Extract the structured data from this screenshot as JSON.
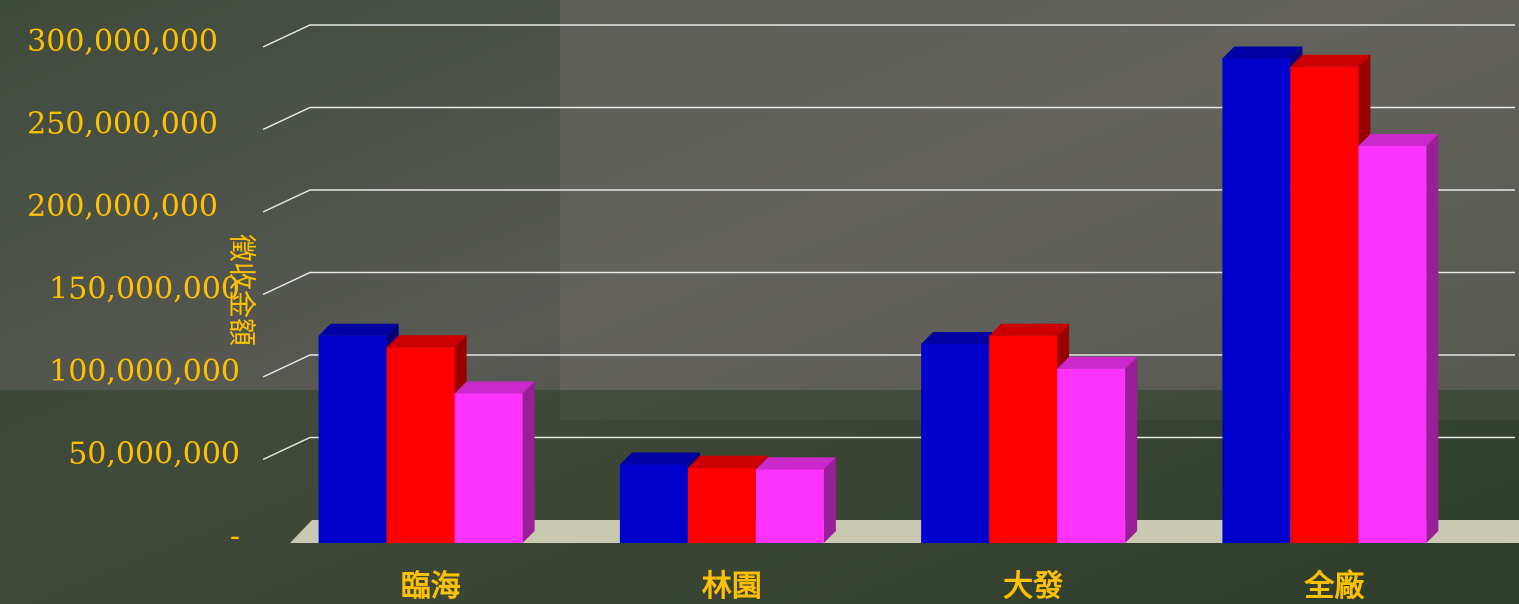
{
  "chart_data": {
    "type": "bar3d",
    "y_label": "徵收金額",
    "categories": [
      "臨海",
      "林園",
      "大發",
      "全廠"
    ],
    "series": [
      {
        "color": "#0000cc",
        "values": [
          125000000,
          47000000,
          120000000,
          293000000
        ]
      },
      {
        "color": "#ff0000",
        "values": [
          118000000,
          45000000,
          125000000,
          288000000
        ]
      },
      {
        "color": "#ff33ff",
        "values": [
          90000000,
          44000000,
          105000000,
          240000000
        ]
      }
    ],
    "ylim": [
      0,
      300000000
    ],
    "yticks": [
      {
        "value": 0,
        "label": "-"
      },
      {
        "value": 50000000,
        "label": "50,000,000"
      },
      {
        "value": 100000000,
        "label": "100,000,000"
      },
      {
        "value": 150000000,
        "label": "150,000,000"
      },
      {
        "value": 200000000,
        "label": "200,000,000"
      },
      {
        "value": 250000000,
        "label": "250,000,000"
      },
      {
        "value": 300000000,
        "label": "300,000,000"
      }
    ],
    "grid": true
  }
}
